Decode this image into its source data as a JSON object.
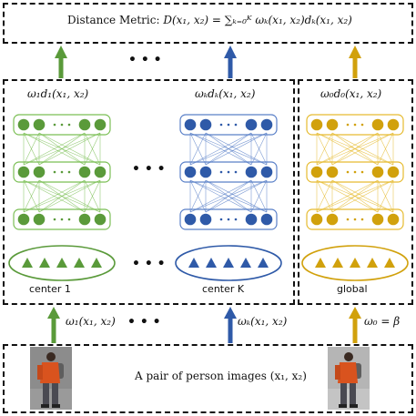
{
  "top_box": {
    "label": "Distance Metric:",
    "formula": "D(x₁, x₂) = ∑ₖ₌₀ᴷ ωₖ(x₁, x₂)dₖ(x₁, x₂)"
  },
  "dots": "• • •",
  "columns": [
    {
      "id": "center-1",
      "weight_label": "ω₁d₁(x₁, x₂)",
      "center_label": "center 1",
      "input_label": "ω₁(x₁, x₂)",
      "color": "#5a9a3a",
      "light": "#7bbf55"
    },
    {
      "id": "center-k",
      "weight_label": "ωₖdₖ(x₁, x₂)",
      "center_label": "center K",
      "input_label": "ωₖ(x₁, x₂)",
      "color": "#2f5aa8",
      "light": "#5a80c8"
    },
    {
      "id": "global",
      "weight_label": "ω₀d₀(x₁, x₂)",
      "center_label": "global",
      "input_label": "ω₀ = β",
      "color": "#d1a10c",
      "light": "#e6bb30"
    }
  ],
  "bottom_box": {
    "label": "A pair of person images (x₁, x₂)"
  }
}
